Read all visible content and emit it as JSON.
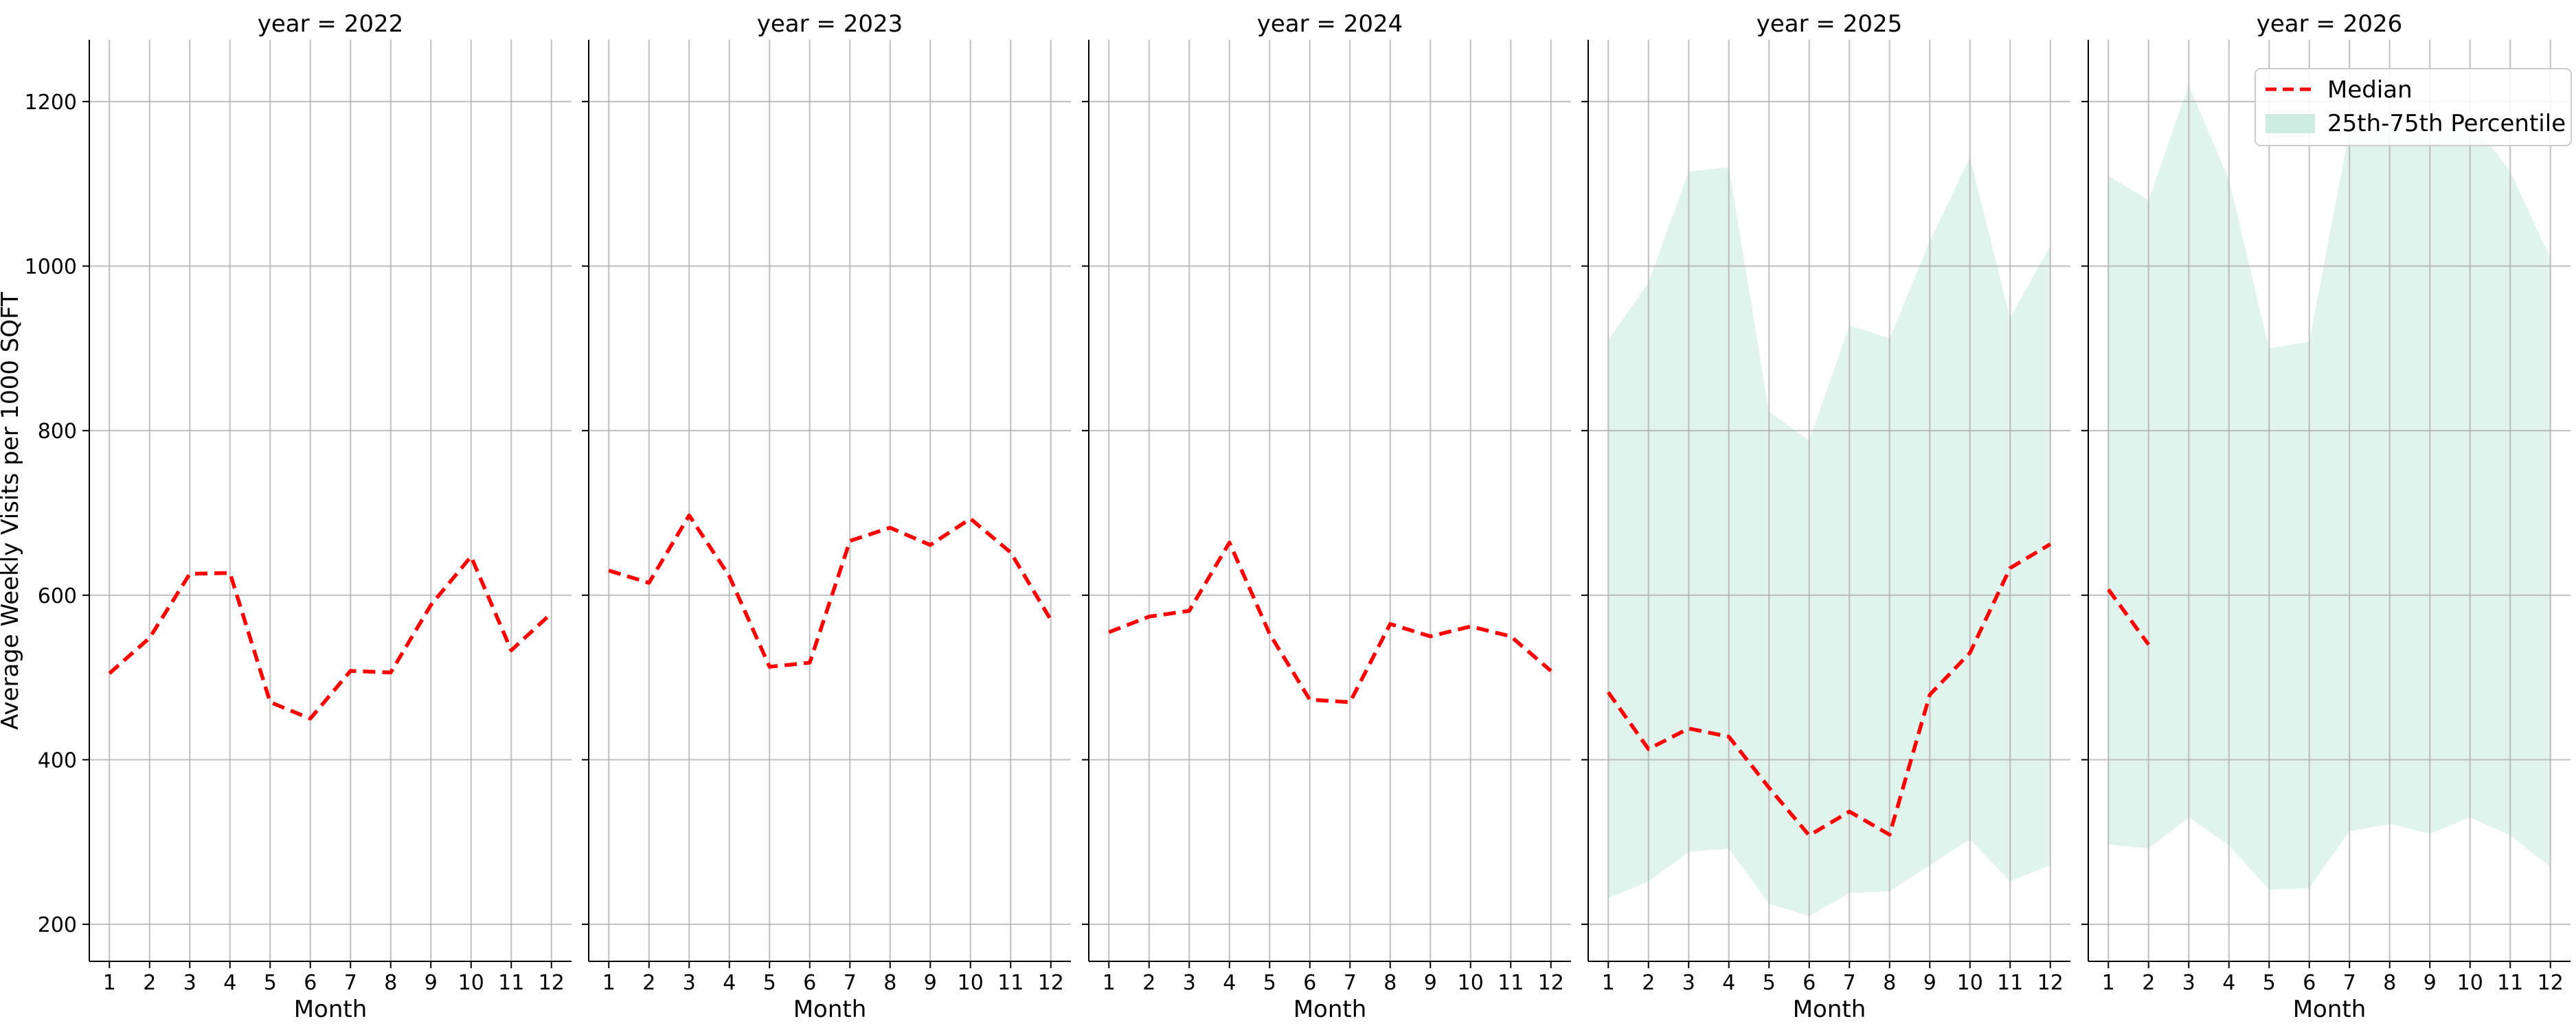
{
  "figure": {
    "ylabel": "Average Weekly Visits per 1000 SQFT",
    "xlabel": "Month",
    "legend": {
      "median": "Median",
      "band": "25th-75th Percentile",
      "placement": "top-right"
    },
    "colors": {
      "median": "#ff0000",
      "band": "#cfece3",
      "grid": "#b0b0b0",
      "axis": "#000000"
    }
  },
  "chart_data": {
    "type": "line",
    "grid": true,
    "shared_y": true,
    "ylim": [
      155,
      1275
    ],
    "xlim": [
      0.5,
      12.5
    ],
    "yticks": [
      200,
      400,
      600,
      800,
      1000,
      1200
    ],
    "xticks": [
      1,
      2,
      3,
      4,
      5,
      6,
      7,
      8,
      9,
      10,
      11,
      12
    ],
    "panels": [
      {
        "title": "year = 2022",
        "median": [
          [
            1,
            505
          ],
          [
            2,
            548
          ],
          [
            3,
            626
          ],
          [
            4,
            627
          ],
          [
            5,
            470
          ],
          [
            6,
            450
          ],
          [
            7,
            508
          ],
          [
            8,
            506
          ],
          [
            9,
            588
          ],
          [
            10,
            647
          ],
          [
            11,
            533
          ],
          [
            12,
            578
          ]
        ],
        "band": []
      },
      {
        "title": "year = 2023",
        "median": [
          [
            1,
            630
          ],
          [
            2,
            615
          ],
          [
            3,
            697
          ],
          [
            4,
            623
          ],
          [
            5,
            513
          ],
          [
            6,
            518
          ],
          [
            7,
            666
          ],
          [
            8,
            682
          ],
          [
            9,
            661
          ],
          [
            10,
            693
          ],
          [
            11,
            652
          ],
          [
            12,
            570
          ]
        ],
        "band": []
      },
      {
        "title": "year = 2024",
        "median": [
          [
            1,
            555
          ],
          [
            2,
            574
          ],
          [
            3,
            581
          ],
          [
            4,
            664
          ],
          [
            5,
            553
          ],
          [
            6,
            473
          ],
          [
            7,
            470
          ],
          [
            8,
            565
          ],
          [
            9,
            550
          ],
          [
            10,
            562
          ],
          [
            11,
            550
          ],
          [
            12,
            508
          ]
        ],
        "band": []
      },
      {
        "title": "year = 2025",
        "median": [
          [
            1,
            482
          ],
          [
            2,
            413
          ],
          [
            3,
            438
          ],
          [
            4,
            428
          ],
          [
            5,
            366
          ],
          [
            6,
            308
          ],
          [
            7,
            337
          ],
          [
            8,
            309
          ],
          [
            9,
            479
          ],
          [
            10,
            530
          ],
          [
            11,
            633
          ],
          [
            12,
            662
          ]
        ],
        "band": [
          [
            1,
            232,
            910
          ],
          [
            2,
            252,
            980
          ],
          [
            3,
            288,
            1115
          ],
          [
            4,
            292,
            1120
          ],
          [
            5,
            225,
            823
          ],
          [
            6,
            210,
            788
          ],
          [
            7,
            238,
            928
          ],
          [
            8,
            240,
            912
          ],
          [
            9,
            272,
            1030
          ],
          [
            10,
            303,
            1132
          ],
          [
            11,
            252,
            937
          ],
          [
            12,
            272,
            1025
          ]
        ]
      },
      {
        "title": "year = 2026",
        "median": [
          [
            1,
            607
          ],
          [
            2,
            540
          ]
        ],
        "band": [
          [
            1,
            297,
            1110
          ],
          [
            2,
            292,
            1080
          ],
          [
            3,
            330,
            1220
          ],
          [
            4,
            296,
            1105
          ],
          [
            5,
            242,
            900
          ],
          [
            6,
            244,
            908
          ],
          [
            7,
            313,
            1165
          ],
          [
            8,
            322,
            1170
          ],
          [
            9,
            310,
            1152
          ],
          [
            10,
            330,
            1180
          ],
          [
            11,
            308,
            1115
          ],
          [
            12,
            270,
            1010
          ]
        ]
      }
    ]
  }
}
